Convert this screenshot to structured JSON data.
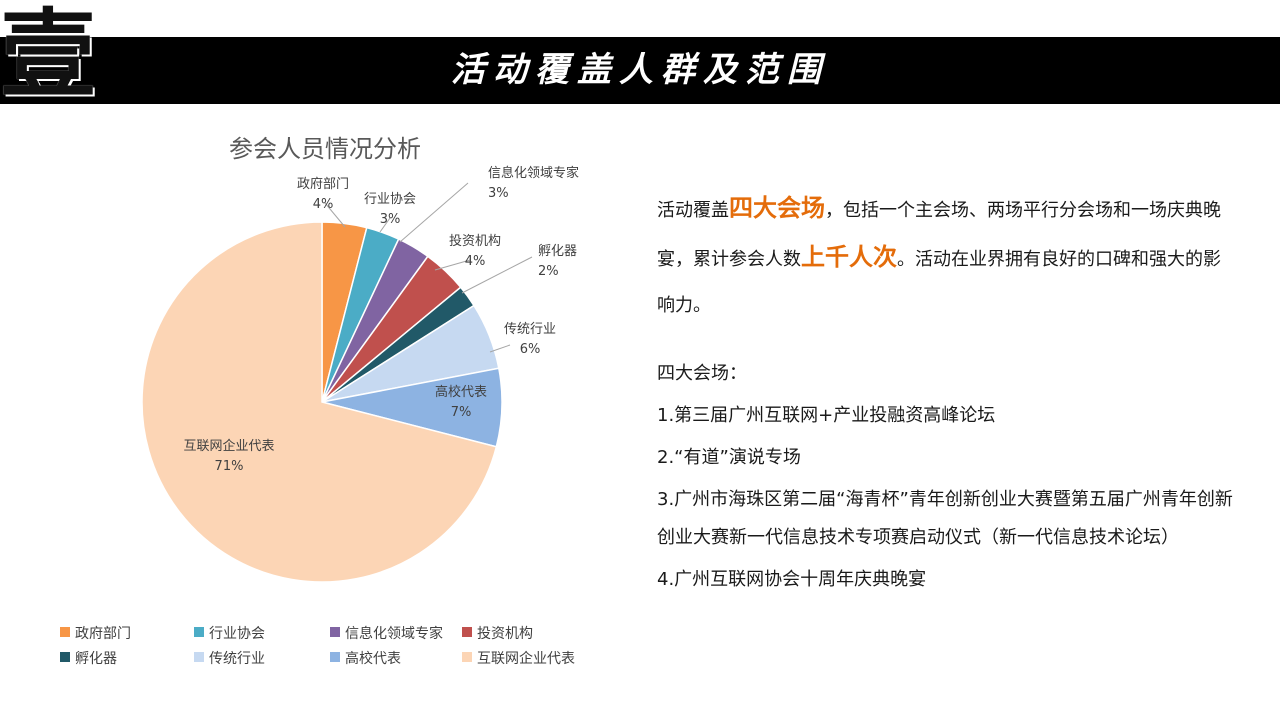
{
  "header": {
    "big_mark": "壹",
    "title": "活动覆盖人群及范围"
  },
  "body_text": {
    "p1": "活动覆盖",
    "hl1": "四大会场",
    "p2": "，包括一个主会场、两场平行分会场和一场庆典晚宴，累计参会人数",
    "hl2": "上千人次",
    "p3": "。活动在业界拥有良好的口碑和强大的影响力。",
    "venues_heading": "四大会场：",
    "venues": [
      "1.第三届广州互联网+产业投融资高峰论坛",
      "2.“有道”演说专场",
      "3.广州市海珠区第二届“海青杯”青年创新创业大赛暨第五届广州青年创新创业大赛新一代信息技术专项赛启动仪式（新一代信息技术论坛）",
      "4.广州互联网协会十周年庆典晚宴"
    ]
  },
  "chart_data": {
    "type": "pie",
    "title": "参会人员情况分析",
    "categories": [
      "政府部门",
      "行业协会",
      "信息化领域专家",
      "投资机构",
      "孵化器",
      "传统行业",
      "高校代表",
      "互联网企业代表"
    ],
    "values": [
      4,
      3,
      3,
      4,
      2,
      6,
      7,
      71
    ],
    "value_labels": [
      "4%",
      "3%",
      "3%",
      "4%",
      "2%",
      "6%",
      "7%",
      "71%"
    ],
    "colors": [
      "#f79646",
      "#4bacc6",
      "#8064a2",
      "#c0504d",
      "#215968",
      "#c6d9f1",
      "#8db3e2",
      "#fcd5b5"
    ],
    "start_angle_deg": 0,
    "direction": "clockwise",
    "legend_position": "bottom"
  }
}
